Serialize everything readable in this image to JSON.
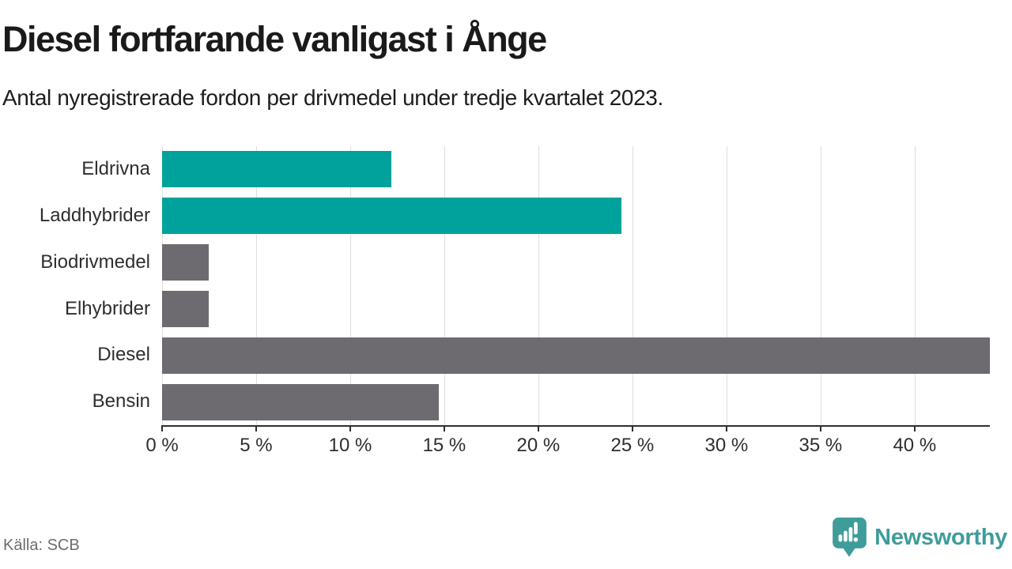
{
  "chart_data": {
    "type": "bar",
    "orientation": "horizontal",
    "title": "Diesel fortfarande vanligast i Ånge",
    "subtitle": "Antal nyregistrerade fordon per drivmedel under tredje kvartalet 2023.",
    "categories": [
      "Eldrivna",
      "Laddhybrider",
      "Biodrivmedel",
      "Elhybrider",
      "Diesel",
      "Bensin"
    ],
    "values": [
      12.2,
      24.4,
      2.5,
      2.5,
      44,
      14.7
    ],
    "unit": "%",
    "xlim": [
      0,
      44
    ],
    "xticks": [
      0,
      5,
      10,
      15,
      20,
      25,
      30,
      35,
      40
    ],
    "xtick_labels": [
      "0 %",
      "5 %",
      "10 %",
      "15 %",
      "20 %",
      "25 %",
      "30 %",
      "35 %",
      "40 %"
    ],
    "grid": true,
    "legend": false,
    "bar_colors": [
      "#00a29b",
      "#00a29b",
      "#6e6b70",
      "#6e6b70",
      "#6e6b70",
      "#6e6b70"
    ]
  },
  "footer": {
    "source": "Källa: SCB",
    "brand": "Newsworthy"
  },
  "colors": {
    "accent_teal": "#00a29b",
    "neutral_gray": "#6e6b70",
    "brand_teal": "#3e9c9b",
    "gridline": "#dedede",
    "axis": "#2e2e2e"
  }
}
